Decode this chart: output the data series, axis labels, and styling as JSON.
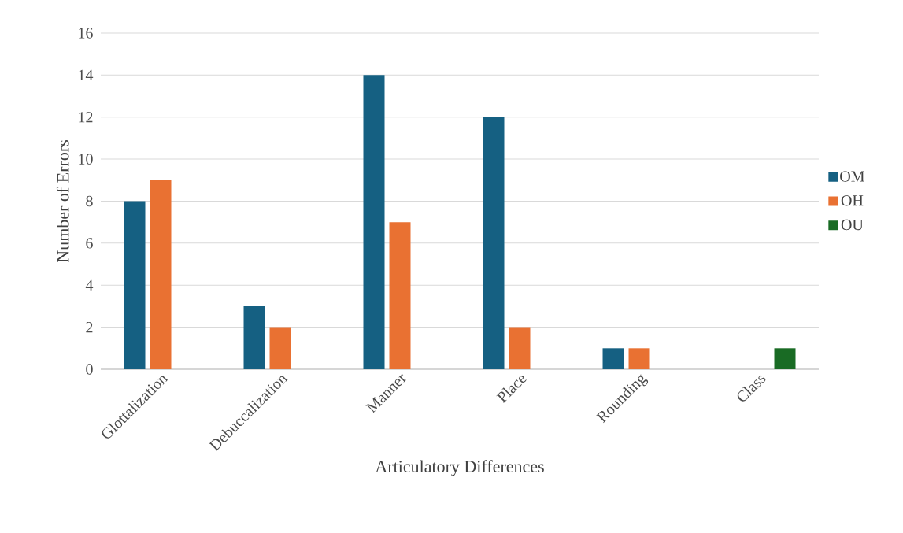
{
  "chart_data": {
    "type": "bar",
    "xlabel": "Articulatory Differences",
    "ylabel": "Number of Errors",
    "categories": [
      "Glottalization",
      "Debuccalization",
      "Manner",
      "Place",
      "Rounding",
      "Class"
    ],
    "series": [
      {
        "name": "OM",
        "color": "#156082",
        "values": [
          8,
          3,
          14,
          12,
          1,
          0
        ]
      },
      {
        "name": "OH",
        "color": "#e97132",
        "values": [
          9,
          2,
          7,
          2,
          1,
          0
        ]
      },
      {
        "name": "OU",
        "color": "#196b24",
        "values": [
          0,
          0,
          0,
          0,
          0,
          1
        ]
      }
    ],
    "ylim": [
      0,
      16
    ],
    "yticks": [
      0,
      2,
      4,
      6,
      8,
      10,
      12,
      14,
      16
    ],
    "grid": "y",
    "legend": "right"
  }
}
